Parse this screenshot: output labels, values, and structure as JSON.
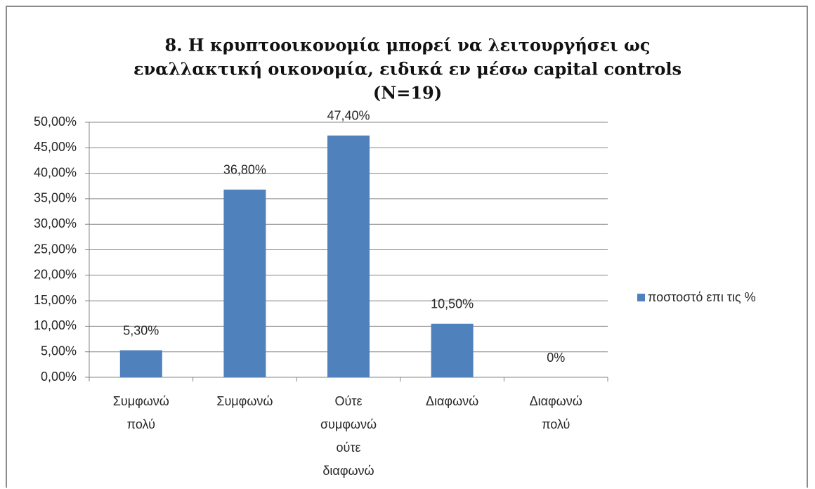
{
  "chart_data": {
    "type": "bar",
    "title": [
      "8. Η κρυπτοοικονομία μπορεί να λειτουργήσει ως",
      "εναλλακτική οικονομία, ειδικά εν μέσω capital controls",
      "(N=19)"
    ],
    "categories": [
      "Συμφωνώ πολύ",
      "Συμφωνώ",
      "Ούτε συμφωνώ ούτε διαφωνώ",
      "Διαφωνώ",
      "Διαφωνώ πολύ"
    ],
    "series": [
      {
        "name": "ποστοστό επι τις %",
        "color": "#4f81bd",
        "values": [
          5.3,
          36.8,
          47.4,
          10.5,
          0
        ],
        "value_labels": [
          "5,30%",
          "36,80%",
          "47,40%",
          "10,50%",
          "0%"
        ]
      }
    ],
    "ylim": [
      0,
      50
    ],
    "yticks": [
      {
        "value": 0,
        "label": "0,00%"
      },
      {
        "value": 5,
        "label": "5,00%"
      },
      {
        "value": 10,
        "label": "10,00%"
      },
      {
        "value": 15,
        "label": "15,00%"
      },
      {
        "value": 20,
        "label": "20,00%"
      },
      {
        "value": 25,
        "label": "25,00%"
      },
      {
        "value": 30,
        "label": "30,00%"
      },
      {
        "value": 35,
        "label": "35,00%"
      },
      {
        "value": 40,
        "label": "40,00%"
      },
      {
        "value": 45,
        "label": "45,00%"
      },
      {
        "value": 50,
        "label": "50,00%"
      }
    ],
    "grid": true,
    "legend": "right"
  }
}
